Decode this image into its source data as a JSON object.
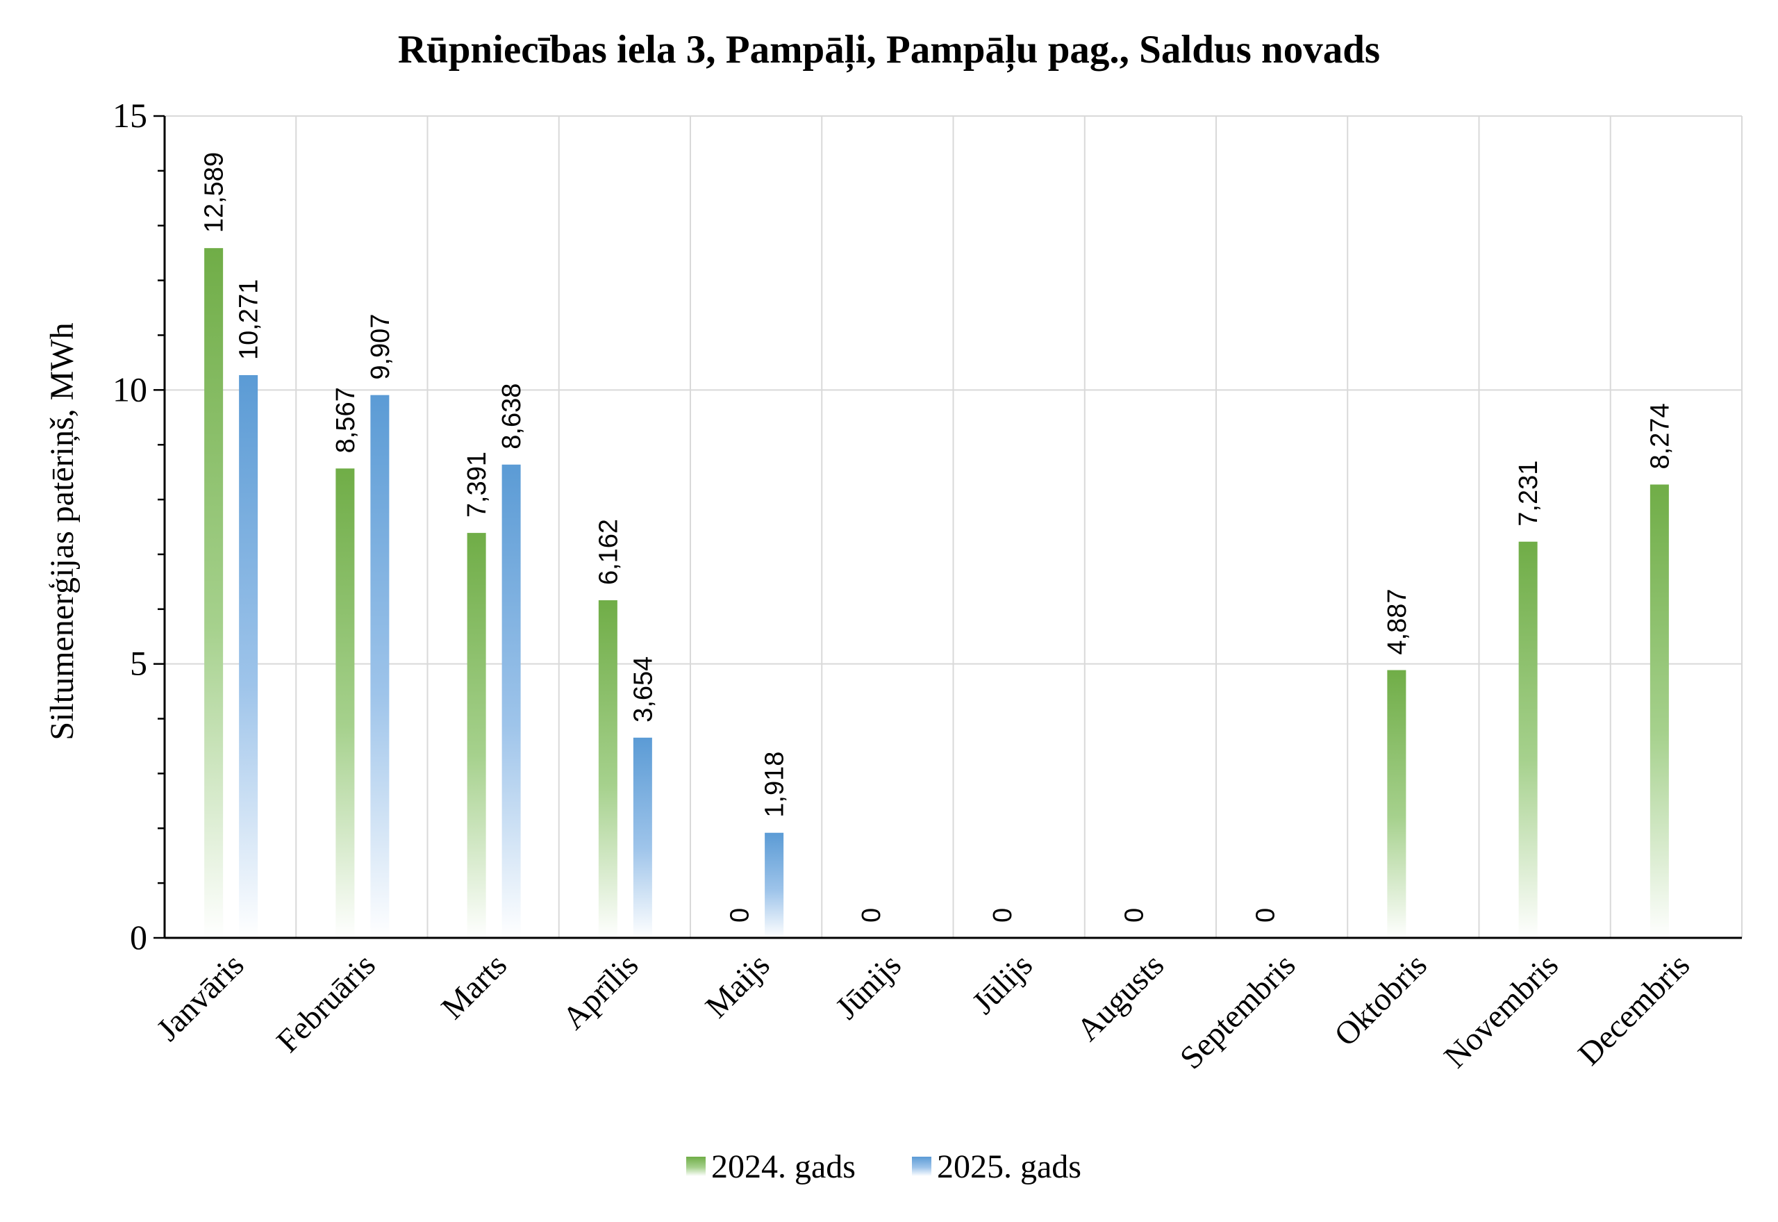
{
  "chart_data": {
    "type": "bar",
    "title": "Rūpniecības iela 3, Pampāļi, Pampāļu pag., Saldus novads",
    "xlabel": "",
    "ylabel": "Siltumenerģijas patēriņš, MWh",
    "ylim": [
      0,
      15
    ],
    "yticks": [
      "0",
      "5",
      "10",
      "15"
    ],
    "grid": true,
    "legend_position": "bottom",
    "categories": [
      "Janvāris",
      "Februāris",
      "Marts",
      "Aprīlis",
      "Maijs",
      "Jūnijs",
      "Jūlijs",
      "Augusts",
      "Septembris",
      "Oktobris",
      "Novembris",
      "Decembris"
    ],
    "series": [
      {
        "name": "2024. gads",
        "color": "#70ad47",
        "values": [
          12.589,
          8.567,
          7.391,
          6.162,
          0,
          0,
          0,
          0,
          0,
          4.887,
          7.231,
          8.274
        ],
        "labels": [
          "12,589",
          "8,567",
          "7,391",
          "6,162",
          "0",
          "0",
          "0",
          "0",
          "0",
          "4,887",
          "7,231",
          "8,274"
        ]
      },
      {
        "name": "2025. gads",
        "color": "#5b9bd5",
        "values": [
          10.271,
          9.907,
          8.638,
          3.654,
          1.918,
          null,
          null,
          null,
          null,
          null,
          null,
          null
        ],
        "labels": [
          "10,271",
          "9,907",
          "8,638",
          "3,654",
          "1,918",
          "",
          "",
          "",
          "",
          "",
          "",
          ""
        ]
      }
    ]
  }
}
